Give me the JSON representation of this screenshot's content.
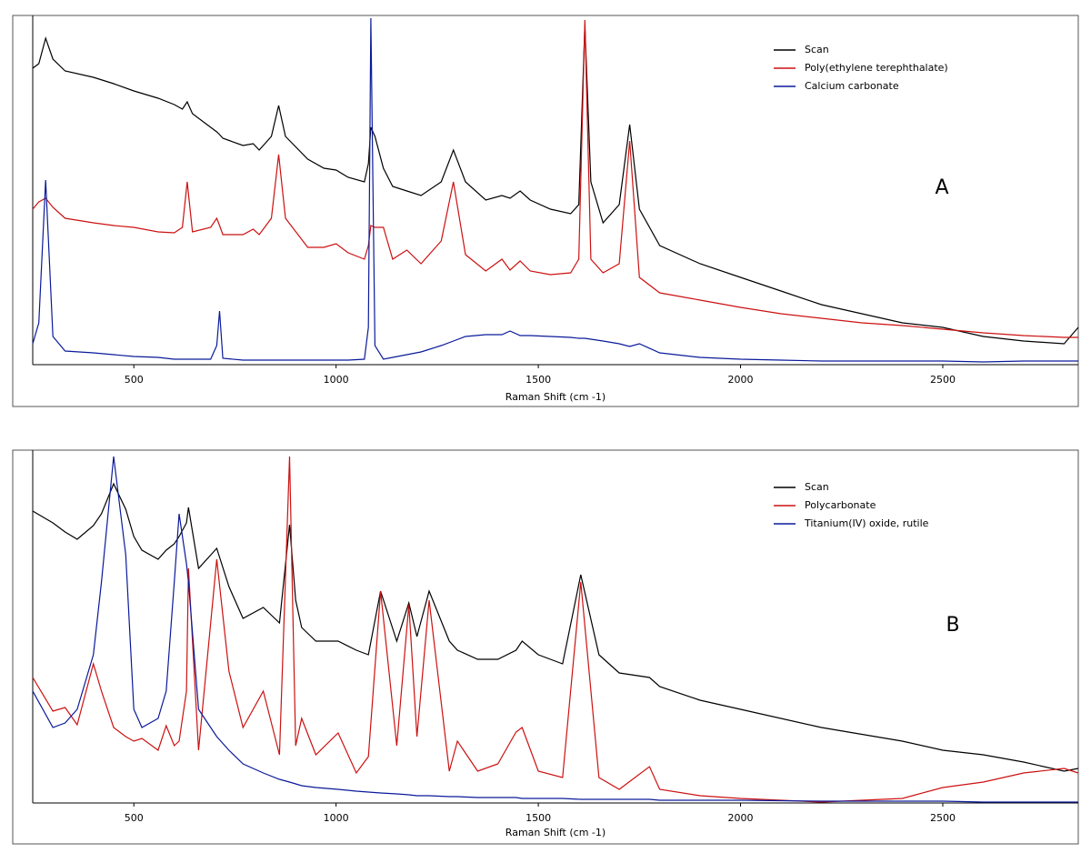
{
  "chart_data": [
    {
      "type": "line",
      "xlabel": "Raman Shift (cm -1)",
      "annotation": "A",
      "xlim": [
        250,
        2835
      ],
      "ylim": [
        0,
        384
      ],
      "xticks": [
        500,
        1000,
        1500,
        2000,
        2500
      ],
      "x": [
        250,
        265,
        282,
        300,
        330,
        400,
        450,
        500,
        560,
        600,
        620,
        632,
        645,
        690,
        705,
        712,
        720,
        770,
        795,
        810,
        840,
        858,
        875,
        930,
        970,
        1000,
        1030,
        1070,
        1080,
        1086,
        1096,
        1117,
        1140,
        1175,
        1210,
        1260,
        1290,
        1320,
        1370,
        1410,
        1430,
        1455,
        1480,
        1530,
        1580,
        1600,
        1615,
        1630,
        1660,
        1700,
        1726,
        1750,
        1800,
        1900,
        2000,
        2100,
        2200,
        2300,
        2400,
        2500,
        2600,
        2700,
        2800,
        2835
      ],
      "series": [
        {
          "name": "Scan",
          "color": "#000000",
          "values": [
            326,
            331,
            359,
            336,
            323,
            316,
            309,
            301,
            293,
            286,
            281,
            289,
            276,
            261,
            256,
            253,
            249,
            241,
            243,
            236,
            251,
            285,
            251,
            226,
            216,
            214,
            206,
            201,
            221,
            261,
            251,
            216,
            196,
            191,
            186,
            201,
            236,
            201,
            181,
            186,
            183,
            191,
            181,
            171,
            166,
            176,
            373,
            201,
            156,
            176,
            264,
            171,
            131,
            111,
            96,
            81,
            66,
            56,
            46,
            41,
            31,
            26,
            23,
            41
          ]
        },
        {
          "name": "Poly(ethylene terephthalate)",
          "color": "#cc1111",
          "values": [
            171,
            179,
            183,
            173,
            161,
            156,
            153,
            151,
            146,
            145,
            151,
            201,
            146,
            151,
            161,
            153,
            143,
            143,
            149,
            143,
            161,
            231,
            161,
            129,
            129,
            133,
            123,
            116,
            131,
            153,
            151,
            151,
            116,
            126,
            111,
            136,
            201,
            121,
            103,
            116,
            104,
            114,
            103,
            99,
            101,
            116,
            379,
            116,
            101,
            111,
            246,
            96,
            79,
            71,
            63,
            56,
            51,
            46,
            43,
            39,
            35,
            32,
            30,
            30
          ]
        },
        {
          "name": "Calcium carbonate",
          "color": "#0a1a9a",
          "values": [
            23,
            46,
            203,
            31,
            15,
            13,
            11,
            9,
            8,
            6,
            6,
            6,
            6,
            6,
            21,
            59,
            7,
            5,
            5,
            5,
            5,
            5,
            5,
            5,
            5,
            5,
            5,
            6,
            41,
            381,
            21,
            6,
            8,
            11,
            14,
            21,
            26,
            31,
            33,
            33,
            37,
            32,
            32,
            31,
            30,
            29,
            29,
            28,
            26,
            23,
            20,
            23,
            13,
            8,
            6,
            5,
            4,
            4,
            4,
            4,
            3,
            4,
            4,
            4
          ]
        }
      ]
    },
    {
      "type": "line",
      "xlabel": "Raman Shift (cm -1)",
      "annotation": "B",
      "xlim": [
        250,
        2835
      ],
      "ylim": [
        0,
        388
      ],
      "xticks": [
        500,
        1000,
        1500,
        2000,
        2500
      ],
      "x": [
        250,
        300,
        330,
        360,
        400,
        420,
        450,
        480,
        500,
        520,
        560,
        580,
        600,
        612,
        630,
        635,
        660,
        705,
        735,
        770,
        820,
        860,
        885,
        900,
        915,
        950,
        1005,
        1050,
        1080,
        1110,
        1150,
        1180,
        1200,
        1230,
        1280,
        1300,
        1350,
        1400,
        1445,
        1460,
        1500,
        1560,
        1605,
        1650,
        1700,
        1775,
        1800,
        1900,
        2000,
        2200,
        2400,
        2500,
        2600,
        2700,
        2800,
        2835
      ],
      "series": [
        {
          "name": "Scan",
          "color": "#000000",
          "values": [
            321,
            308,
            298,
            290,
            305,
            318,
            351,
            323,
            293,
            278,
            268,
            278,
            285,
            293,
            308,
            325,
            258,
            280,
            238,
            203,
            215,
            198,
            306,
            223,
            193,
            178,
            178,
            168,
            163,
            233,
            178,
            220,
            183,
            233,
            178,
            168,
            158,
            158,
            168,
            178,
            163,
            153,
            251,
            163,
            143,
            138,
            128,
            113,
            103,
            83,
            68,
            58,
            53,
            45,
            35,
            38
          ]
        },
        {
          "name": "Polycarbonate",
          "color": "#cc1111",
          "values": [
            138,
            101,
            105,
            86,
            153,
            123,
            83,
            73,
            68,
            71,
            58,
            85,
            63,
            68,
            123,
            258,
            58,
            268,
            145,
            83,
            123,
            53,
            381,
            63,
            93,
            53,
            77,
            33,
            51,
            233,
            63,
            218,
            73,
            223,
            35,
            68,
            35,
            43,
            78,
            83,
            35,
            28,
            243,
            28,
            15,
            40,
            15,
            8,
            5,
            1,
            5,
            17,
            23,
            33,
            38,
            33
          ]
        },
        {
          "name": "Titanium(IV) oxide, rutile",
          "color": "#0a1a9a",
          "values": [
            123,
            83,
            88,
            103,
            163,
            243,
            381,
            273,
            103,
            83,
            93,
            123,
            243,
            318,
            263,
            243,
            103,
            73,
            58,
            43,
            33,
            26,
            23,
            21,
            19,
            17,
            15,
            13,
            12,
            11,
            10,
            9,
            8,
            8,
            7,
            7,
            6,
            6,
            6,
            5,
            5,
            5,
            4,
            4,
            4,
            4,
            3,
            3,
            3,
            2,
            2,
            2,
            1,
            1,
            1,
            1
          ]
        }
      ]
    }
  ]
}
